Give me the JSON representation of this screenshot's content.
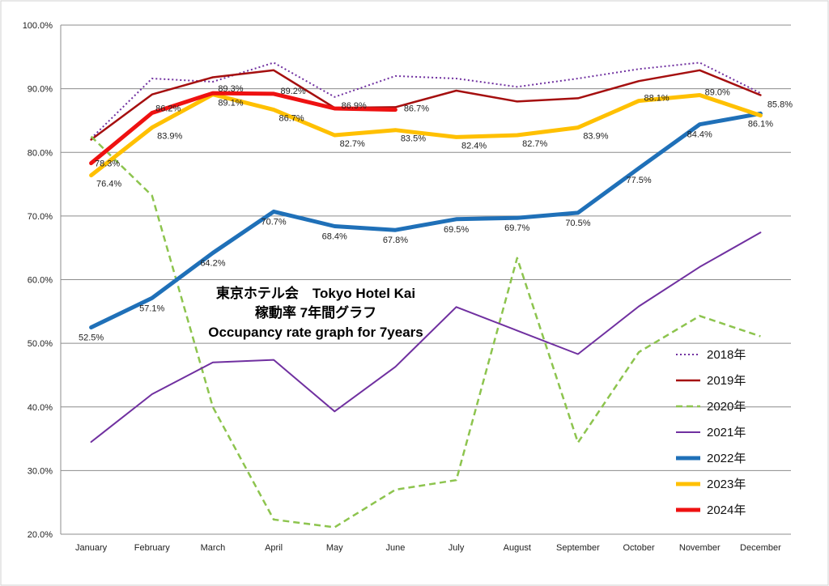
{
  "chart_data": {
    "type": "line",
    "title_lines": [
      "東京ホテル会　Tokyo Hotel Kai",
      "稼動率 7年間グラフ",
      "Occupancy rate graph for 7years"
    ],
    "categories": [
      "January",
      "February",
      "March",
      "April",
      "May",
      "June",
      "July",
      "August",
      "September",
      "October",
      "November",
      "December"
    ],
    "ylim": [
      20,
      100
    ],
    "yticks": [
      "20.0%",
      "30.0%",
      "40.0%",
      "50.0%",
      "60.0%",
      "70.0%",
      "80.0%",
      "90.0%",
      "100.0%"
    ],
    "grid": true,
    "legend_position": "bottom-right",
    "series": [
      {
        "name": "2018年",
        "color": "#7030a0",
        "dash": "2,3",
        "width": 2,
        "values": [
          82.2,
          91.6,
          91.1,
          94.1,
          88.7,
          92.0,
          91.6,
          90.3,
          91.6,
          93.1,
          94.1,
          89.3
        ],
        "labels": []
      },
      {
        "name": "2019年",
        "color": "#a50f0f",
        "dash": "",
        "width": 2.5,
        "values": [
          82.0,
          89.1,
          91.8,
          92.9,
          87.0,
          87.1,
          89.7,
          88.0,
          88.5,
          91.2,
          92.9,
          89.0
        ],
        "labels": []
      },
      {
        "name": "2020年",
        "color": "#8dc44e",
        "dash": "8,5",
        "width": 2.5,
        "values": [
          82.5,
          73.2,
          40.0,
          22.3,
          21.1,
          27.0,
          28.5,
          63.4,
          34.4,
          48.6,
          54.3,
          51.1
        ],
        "labels": []
      },
      {
        "name": "2021年",
        "color": "#7030a0",
        "dash": "",
        "width": 2,
        "values": [
          34.5,
          42.0,
          47.0,
          47.4,
          39.3,
          46.3,
          55.7,
          52.0,
          48.3,
          55.8,
          62.0,
          67.4
        ],
        "labels": []
      },
      {
        "name": "2022年",
        "color": "#1f70b8",
        "dash": "",
        "width": 5,
        "values": [
          52.5,
          57.1,
          64.2,
          70.7,
          68.4,
          67.8,
          69.5,
          69.7,
          70.5,
          77.5,
          84.4,
          86.1
        ],
        "labels": [
          "52.5%",
          "57.1%",
          "64.2%",
          "70.7%",
          "68.4%",
          "67.8%",
          "69.5%",
          "69.7%",
          "70.5%",
          "77.5%",
          "84.4%",
          "86.1%"
        ]
      },
      {
        "name": "2023年",
        "color": "#ffc000",
        "dash": "",
        "width": 5,
        "values": [
          76.4,
          83.9,
          89.1,
          86.7,
          82.7,
          83.5,
          82.4,
          82.7,
          83.9,
          88.1,
          89.0,
          85.8
        ],
        "labels": [
          "76.4%",
          "83.9%",
          "89.1%",
          "86.7%",
          "82.7%",
          "83.5%",
          "82.4%",
          "82.7%",
          "83.9%",
          "88.1%",
          "89.0%",
          "85.8%"
        ]
      },
      {
        "name": "2024年",
        "color": "#ee1111",
        "dash": "",
        "width": 5,
        "values": [
          78.3,
          86.2,
          89.3,
          89.2,
          86.9,
          86.7,
          null,
          null,
          null,
          null,
          null,
          null
        ],
        "labels": [
          "78.3%",
          "86.2%",
          "89.3%",
          "89.2%",
          "86.9%",
          "86.7%"
        ]
      }
    ]
  }
}
